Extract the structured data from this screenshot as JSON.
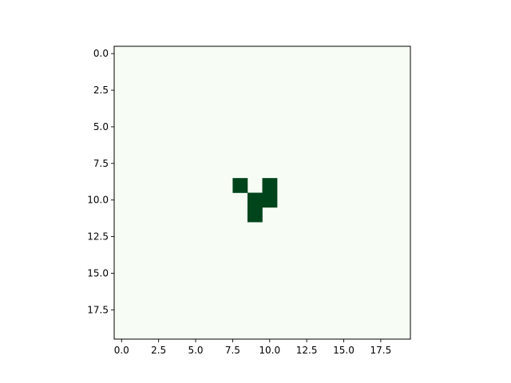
{
  "chart_data": {
    "type": "heatmap",
    "title": "",
    "xlabel": "",
    "ylabel": "",
    "rows": 20,
    "cols": 20,
    "xlim": [
      -0.5,
      19.5
    ],
    "ylim": [
      19.5,
      -0.5
    ],
    "x_ticks": [
      0.0,
      2.5,
      5.0,
      7.5,
      10.0,
      12.5,
      15.0,
      17.5
    ],
    "y_ticks": [
      0.0,
      2.5,
      5.0,
      7.5,
      10.0,
      12.5,
      15.0,
      17.5
    ],
    "x_tick_labels": [
      "0.0",
      "2.5",
      "5.0",
      "7.5",
      "10.0",
      "12.5",
      "15.0",
      "17.5"
    ],
    "y_tick_labels": [
      "0.0",
      "2.5",
      "5.0",
      "7.5",
      "10.0",
      "12.5",
      "15.0",
      "17.5"
    ],
    "background_value": 0,
    "filled_cells": [
      {
        "row": 9,
        "col": 8,
        "value": 1
      },
      {
        "row": 9,
        "col": 10,
        "value": 1
      },
      {
        "row": 10,
        "col": 9,
        "value": 1
      },
      {
        "row": 10,
        "col": 10,
        "value": 1
      },
      {
        "row": 11,
        "col": 9,
        "value": 1
      }
    ],
    "colormap": "Greens",
    "colors": {
      "low": "#f7fcf5",
      "high": "#00441b"
    },
    "grid": false,
    "legend": "none"
  }
}
